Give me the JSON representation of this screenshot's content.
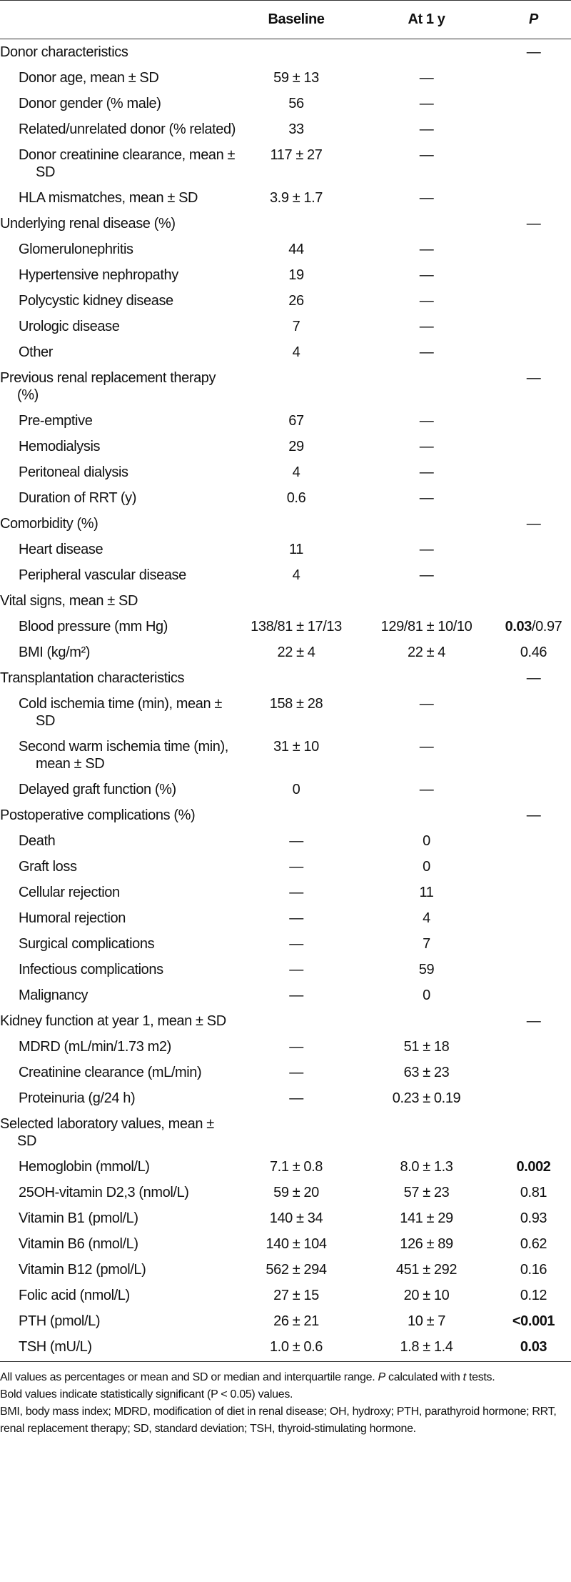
{
  "table": {
    "header": {
      "baseline": "Baseline",
      "at1y": "At 1 y",
      "p": "P"
    },
    "rows": [
      {
        "section": true,
        "label": "Donor characteristics",
        "p": "—"
      },
      {
        "label": "Donor age, mean ± SD",
        "baseline": "59 ± 13",
        "at1y": "—"
      },
      {
        "label": "Donor gender (% male)",
        "baseline": "56",
        "at1y": "—"
      },
      {
        "label": "Related/unrelated donor (% related)",
        "baseline": "33",
        "at1y": "—"
      },
      {
        "label": "Donor creatinine clearance, mean ± SD",
        "baseline": "117 ± 27",
        "at1y": "—"
      },
      {
        "label": "HLA mismatches, mean ± SD",
        "baseline": "3.9 ± 1.7",
        "at1y": "—"
      },
      {
        "section": true,
        "label": "Underlying renal disease (%)",
        "p": "—"
      },
      {
        "label": "Glomerulonephritis",
        "baseline": "44",
        "at1y": "—"
      },
      {
        "label": "Hypertensive nephropathy",
        "baseline": "19",
        "at1y": "—"
      },
      {
        "label": "Polycystic kidney disease",
        "baseline": "26",
        "at1y": "—"
      },
      {
        "label": "Urologic disease",
        "baseline": "7",
        "at1y": "—"
      },
      {
        "label": "Other",
        "baseline": "4",
        "at1y": "—"
      },
      {
        "section": true,
        "label": "Previous renal replacement therapy (%)",
        "p": "—"
      },
      {
        "label": "Pre-emptive",
        "baseline": "67",
        "at1y": "—"
      },
      {
        "label": "Hemodialysis",
        "baseline": "29",
        "at1y": "—"
      },
      {
        "label": "Peritoneal dialysis",
        "baseline": "4",
        "at1y": "—"
      },
      {
        "label": "Duration of RRT (y)",
        "baseline": "0.6",
        "at1y": "—"
      },
      {
        "section": true,
        "label": "Comorbidity (%)",
        "p": "—"
      },
      {
        "label": "Heart disease",
        "baseline": "11",
        "at1y": "—"
      },
      {
        "label": "Peripheral vascular disease",
        "baseline": "4",
        "at1y": "—"
      },
      {
        "section": true,
        "label": "Vital signs, mean ± SD"
      },
      {
        "label": "Blood pressure (mm Hg)",
        "baseline": "138/81 ± 17/13",
        "at1y": "129/81 ± 10/10",
        "p_bold": "0.03",
        "p": "/0.97"
      },
      {
        "label": "BMI (kg/m²)",
        "baseline": "22 ± 4",
        "at1y": "22 ± 4",
        "p": "0.46"
      },
      {
        "section": true,
        "label": "Transplantation characteristics",
        "p": "—"
      },
      {
        "label": "Cold ischemia time (min), mean ± SD",
        "baseline": "158 ± 28",
        "at1y": "—"
      },
      {
        "label": "Second warm ischemia time (min), mean ± SD",
        "baseline": "31 ± 10",
        "at1y": "—"
      },
      {
        "label": "Delayed graft function (%)",
        "baseline": "0",
        "at1y": "—"
      },
      {
        "section": true,
        "label": "Postoperative complications (%)",
        "p": "—"
      },
      {
        "label": "Death",
        "baseline": "—",
        "at1y": "0"
      },
      {
        "label": "Graft loss",
        "baseline": "—",
        "at1y": "0"
      },
      {
        "label": "Cellular rejection",
        "baseline": "—",
        "at1y": "11"
      },
      {
        "label": "Humoral rejection",
        "baseline": "—",
        "at1y": "4"
      },
      {
        "label": "Surgical complications",
        "baseline": "—",
        "at1y": "7"
      },
      {
        "label": "Infectious complications",
        "baseline": "—",
        "at1y": "59"
      },
      {
        "label": "Malignancy",
        "baseline": "—",
        "at1y": "0"
      },
      {
        "section": true,
        "label": "Kidney function at year 1, mean ± SD",
        "p": "—"
      },
      {
        "label": "MDRD (mL/min/1.73 m2)",
        "baseline": "—",
        "at1y": "51 ± 18"
      },
      {
        "label": "Creatinine clearance (mL/min)",
        "baseline": "—",
        "at1y": "63 ± 23"
      },
      {
        "label": "Proteinuria (g/24 h)",
        "baseline": "—",
        "at1y": "0.23 ± 0.19"
      },
      {
        "section": true,
        "label": "Selected laboratory values, mean ± SD"
      },
      {
        "label": "Hemoglobin (mmol/L)",
        "baseline": "7.1 ± 0.8",
        "at1y": "8.0 ± 1.3",
        "p_bold": "0.002"
      },
      {
        "label": "25OH-vitamin D2,3 (nmol/L)",
        "baseline": "59 ± 20",
        "at1y": "57 ± 23",
        "p": "0.81"
      },
      {
        "label": "Vitamin B1 (pmol/L)",
        "baseline": "140 ± 34",
        "at1y": "141 ± 29",
        "p": "0.93"
      },
      {
        "label": "Vitamin B6 (nmol/L)",
        "baseline": "140 ± 104",
        "at1y": "126 ± 89",
        "p": "0.62"
      },
      {
        "label": "Vitamin B12 (pmol/L)",
        "baseline": "562 ± 294",
        "at1y": "451 ± 292",
        "p": "0.16"
      },
      {
        "label": "Folic acid (nmol/L)",
        "baseline": "27 ± 15",
        "at1y": "20 ± 10",
        "p": "0.12"
      },
      {
        "label": "PTH (pmol/L)",
        "baseline": "26 ± 21",
        "at1y": "10 ± 7",
        "p_bold": "<0.001"
      },
      {
        "label": "TSH (mU/L)",
        "baseline": "1.0 ± 0.6",
        "at1y": "1.8 ± 1.4",
        "p_bold": "0.03"
      }
    ]
  },
  "footnotes": [
    [
      {
        "text": "All values as percentages or mean and SD or median and interquartile range. "
      },
      {
        "text": "P",
        "italic": true
      },
      {
        "text": " calculated with "
      },
      {
        "text": "t",
        "italic": true
      },
      {
        "text": " tests."
      }
    ],
    [
      {
        "text": "Bold values indicate statistically significant (P < 0.05) values."
      }
    ],
    [
      {
        "text": "BMI, body mass index; MDRD, modification of diet in renal disease; OH, hydroxy; PTH, parathyroid hormone; RRT, renal replacement therapy; SD, standard deviation; TSH, thyroid-stimulating hormone."
      }
    ]
  ]
}
